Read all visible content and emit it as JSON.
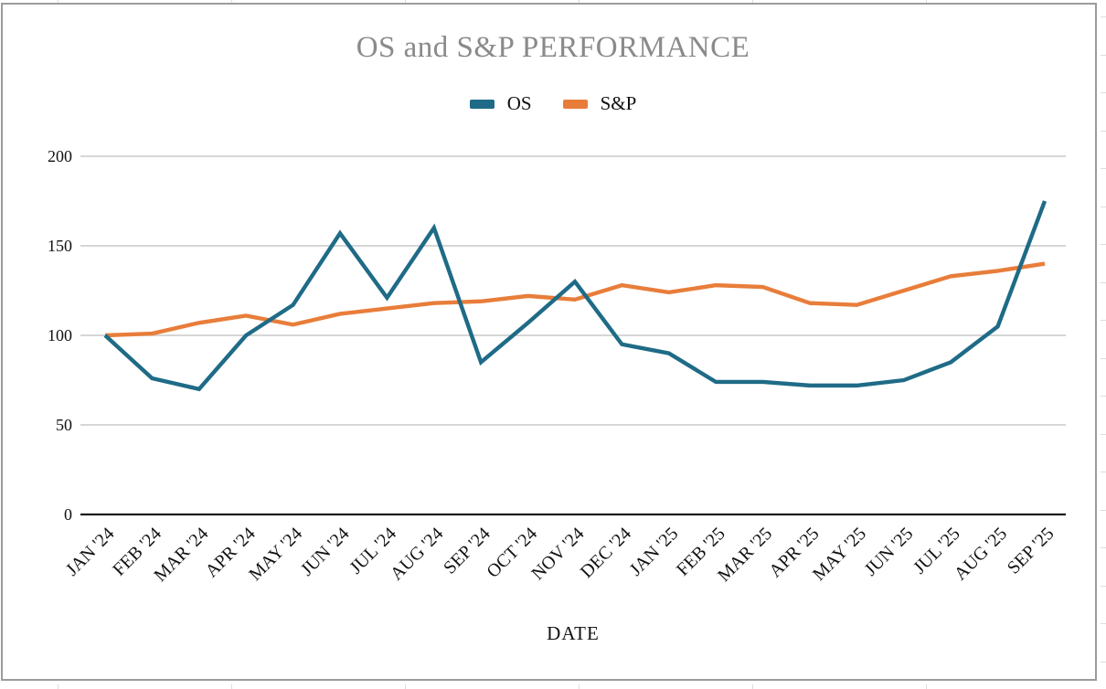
{
  "page": {
    "title": "OS and S&P PERFORMANCE",
    "xlabel": "DATE"
  },
  "colors": {
    "title_text": "#8a8a8a",
    "axis_text": "#111111",
    "gridline": "#c9c9c9",
    "baseline": "#1c1c1c",
    "frame_border": "#9b9b9b",
    "margin_grid": "#dddddd",
    "os_series": "#1f6b87",
    "sp_series": "#e87d3a"
  },
  "chart_data": {
    "type": "line",
    "title": "OS and S&P PERFORMANCE",
    "xlabel": "DATE",
    "ylabel": "",
    "ylim": [
      0,
      200
    ],
    "yticks": [
      0,
      50,
      100,
      150,
      200
    ],
    "grid": true,
    "legend_position": "top-center",
    "categories": [
      "JAN '24",
      "FEB '24",
      "MAR '24",
      "APR '24",
      "MAY '24",
      "JUN '24",
      "JUL '24",
      "AUG '24",
      "SEP '24",
      "OCT '24",
      "NOV '24",
      "DEC '24",
      "JAN '25",
      "FEB '25",
      "MAR '25",
      "APR '25",
      "MAY '25",
      "JUN '25",
      "JUL '25",
      "AUG '25",
      "SEP '25"
    ],
    "series": [
      {
        "name": "OS",
        "color": "#1f6b87",
        "values": [
          100,
          76,
          70,
          100,
          117,
          157,
          121,
          160,
          85,
          107,
          130,
          95,
          90,
          74,
          74,
          72,
          72,
          75,
          85,
          105,
          175
        ]
      },
      {
        "name": "S&P",
        "color": "#e87d3a",
        "values": [
          100,
          101,
          107,
          111,
          106,
          112,
          115,
          118,
          119,
          122,
          120,
          128,
          124,
          128,
          127,
          118,
          117,
          125,
          133,
          136,
          140
        ]
      }
    ]
  }
}
